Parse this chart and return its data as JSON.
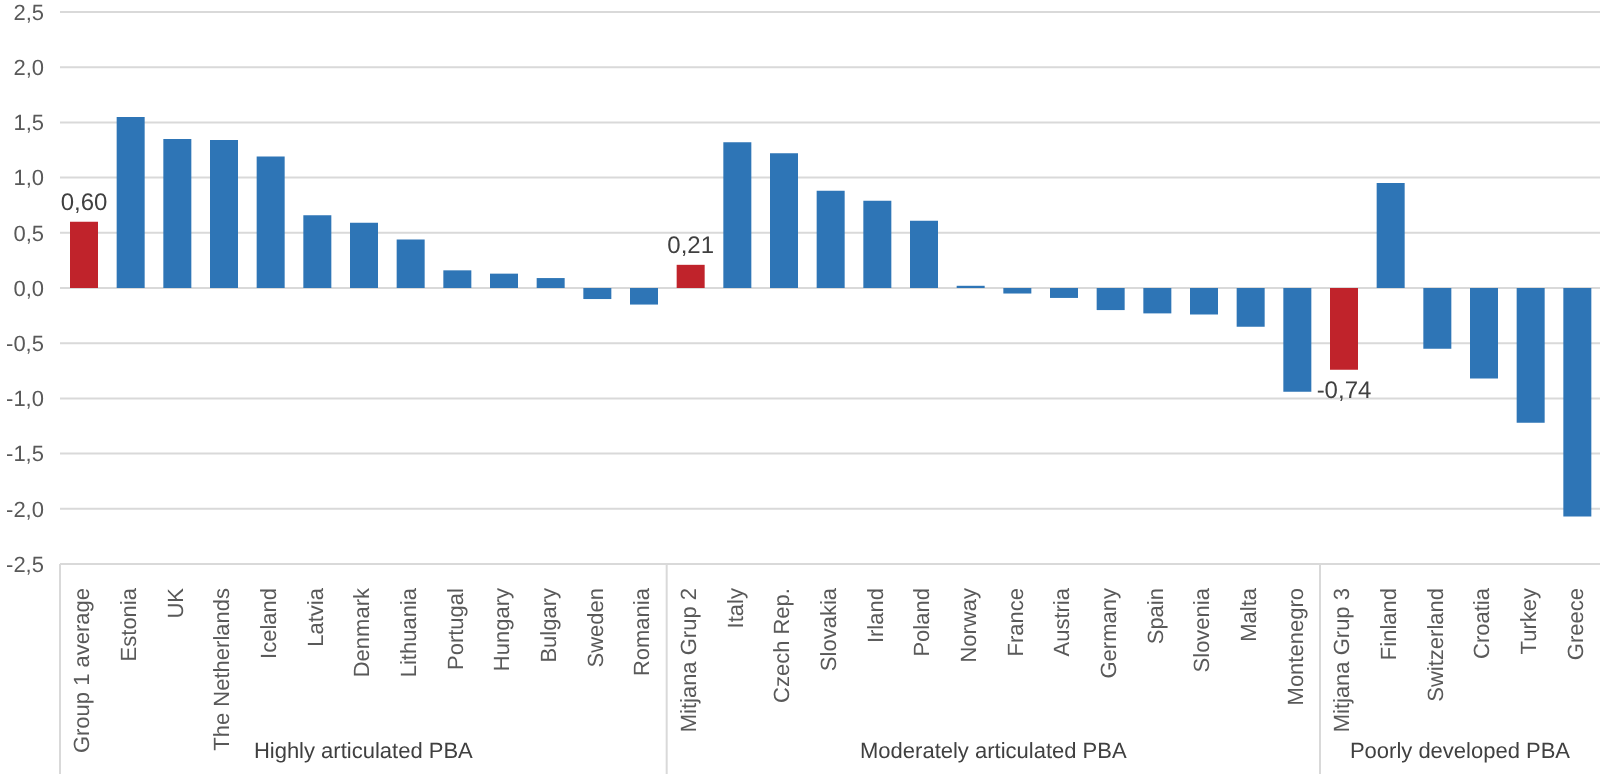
{
  "chart_data": {
    "type": "bar",
    "categories": [
      "Group 1 average",
      "Estonia",
      "UK",
      "The Netherlands",
      "Iceland",
      "Latvia",
      "Denmark",
      "Lithuania",
      "Portugal",
      "Hungary",
      "Bulgary",
      "Sweden",
      "Romania",
      "Mitjana Grup 2",
      "Italy",
      "Czech Rep.",
      "Slovakia",
      "Irland",
      "Poland",
      "Norway",
      "France",
      "Austria",
      "Germany",
      "Spain",
      "Slovenia",
      "Malta",
      "Montenegro",
      "Mitjana Grup 3",
      "Finland",
      "Switzerland",
      "Croatia",
      "Turkey",
      "Greece"
    ],
    "values": [
      0.6,
      1.55,
      1.35,
      1.34,
      1.19,
      0.66,
      0.59,
      0.44,
      0.16,
      0.13,
      0.09,
      -0.1,
      -0.15,
      0.21,
      1.32,
      1.22,
      0.88,
      0.79,
      0.61,
      0.02,
      -0.05,
      -0.09,
      -0.2,
      -0.23,
      -0.24,
      -0.35,
      -0.94,
      -0.74,
      0.95,
      -0.55,
      -0.82,
      -1.22,
      -2.07
    ],
    "colors": [
      "#c0232b",
      "#2e75b6",
      "#2e75b6",
      "#2e75b6",
      "#2e75b6",
      "#2e75b6",
      "#2e75b6",
      "#2e75b6",
      "#2e75b6",
      "#2e75b6",
      "#2e75b6",
      "#2e75b6",
      "#2e75b6",
      "#c0232b",
      "#2e75b6",
      "#2e75b6",
      "#2e75b6",
      "#2e75b6",
      "#2e75b6",
      "#2e75b6",
      "#2e75b6",
      "#2e75b6",
      "#2e75b6",
      "#2e75b6",
      "#2e75b6",
      "#2e75b6",
      "#2e75b6",
      "#c0232b",
      "#2e75b6",
      "#2e75b6",
      "#2e75b6",
      "#2e75b6",
      "#2e75b6"
    ],
    "value_labels": [
      "0,60",
      null,
      null,
      null,
      null,
      null,
      null,
      null,
      null,
      null,
      null,
      null,
      null,
      "0,21",
      null,
      null,
      null,
      null,
      null,
      null,
      null,
      null,
      null,
      null,
      null,
      null,
      null,
      "-0,74",
      null,
      null,
      null,
      null,
      null
    ],
    "ylim": [
      -2.5,
      2.5
    ],
    "yticks": [
      {
        "value": -2.5,
        "label": "-2,5"
      },
      {
        "value": -2,
        "label": "-2,0"
      },
      {
        "value": -1.5,
        "label": "-1,5"
      },
      {
        "value": -1,
        "label": "-1,0"
      },
      {
        "value": -0.5,
        "label": "-0,5"
      },
      {
        "value": 0,
        "label": "0,0"
      },
      {
        "value": 0.5,
        "label": "0,5"
      },
      {
        "value": 1,
        "label": "1,0"
      },
      {
        "value": 1.5,
        "label": "1,5"
      },
      {
        "value": 2,
        "label": "2,0"
      },
      {
        "value": 2.5,
        "label": "2,5"
      }
    ],
    "grid": "y",
    "legend": false,
    "annotations": [
      "Highly articulated PBA",
      "Moderately articulated PBA",
      "Poorly developed PBA"
    ]
  }
}
